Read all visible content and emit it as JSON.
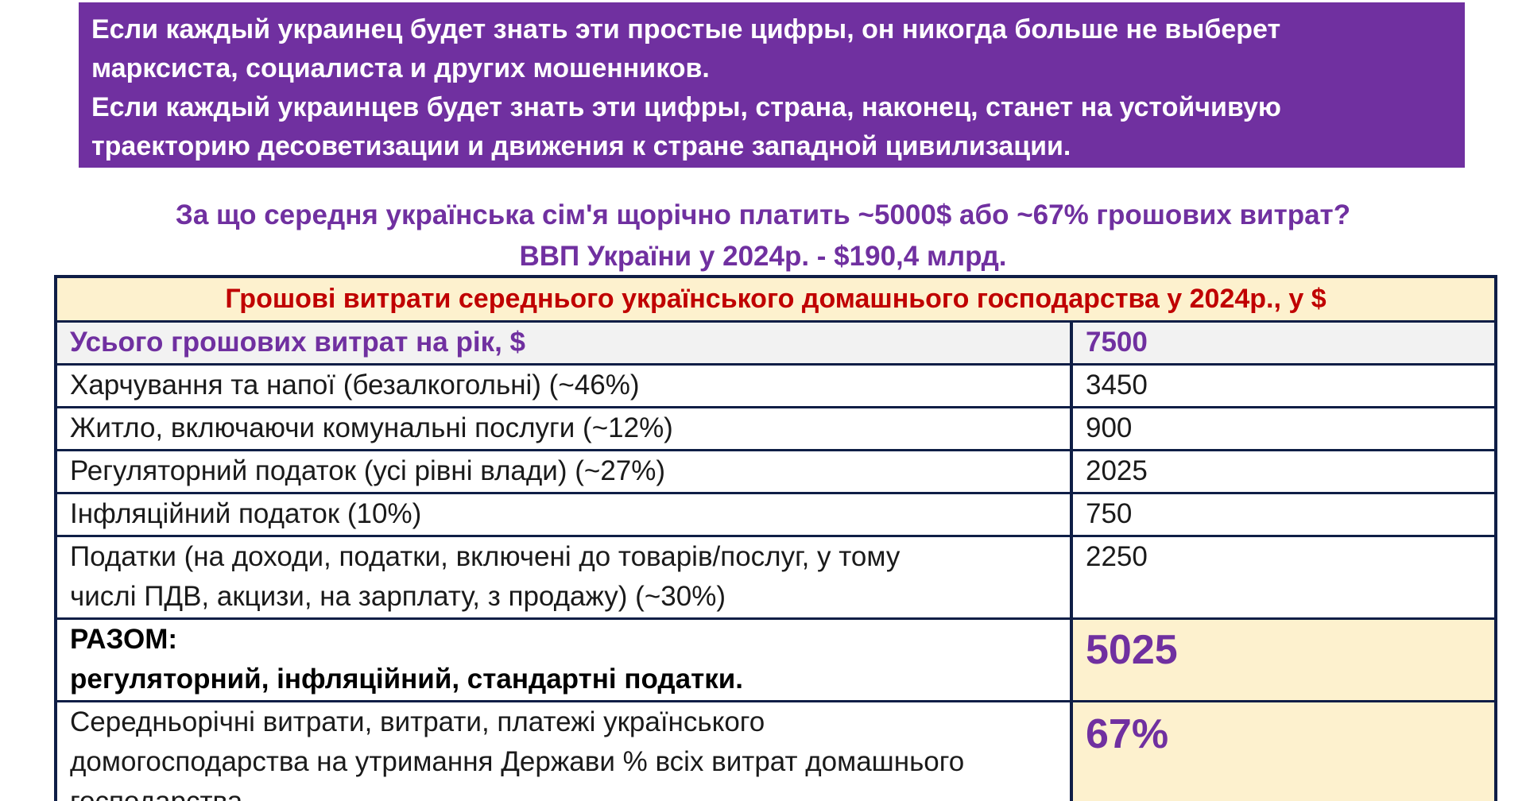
{
  "intro": {
    "lines": [
      "Если каждый украинец будет знать эти простые цифры, он никогда больше не выберет",
      "марксиста, социалиста и других мошенников.",
      "Если каждый украинцев будет знать эти цифры, страна, наконец, станет на устойчивую",
      "траекторию десоветизации и движения к стране западной цивилизации."
    ]
  },
  "subtitle": {
    "line1": "За що середня українська сім'я щорічно платить ~5000$ або ~67% грошових витрат?",
    "line2": "ВВП України у 2024р. - $190,4 млрд."
  },
  "table": {
    "title": "Грошові витрати середнього українського домашнього господарства у 2024р., у $",
    "total": {
      "label": "Усього грошових витрат на рік, $",
      "value": "7500"
    },
    "rows": [
      {
        "label": "Харчування та напої (безалкогольні) (~46%)",
        "value": "3450"
      },
      {
        "label": "Житло, включаючи комунальні послуги (~12%)",
        "value": "900"
      },
      {
        "label": "Регуляторний податок (усі рівні влади) (~27%)",
        "value": "2025"
      },
      {
        "label": "Інфляційний податок (10%)",
        "value": "750"
      },
      {
        "label_line1": "Податки (на доходи, податки, включені до товарів/послуг, у тому",
        "label_line2": "числі ПДВ, акцизи, на зарплату, з продажу) (~30%)",
        "value": "2250"
      }
    ],
    "sum": {
      "label_line1": "РАЗОМ:",
      "label_line2": "регуляторний, інфляційний, стандартні податки.",
      "value": "5025"
    },
    "share": {
      "label_line1": "Середньорічні витрати, витрати, платежі українського",
      "label_line2": "домогосподарства на утримання Держави % всіх витрат домашнього",
      "label_line3": "господарства",
      "value": "67%"
    }
  }
}
